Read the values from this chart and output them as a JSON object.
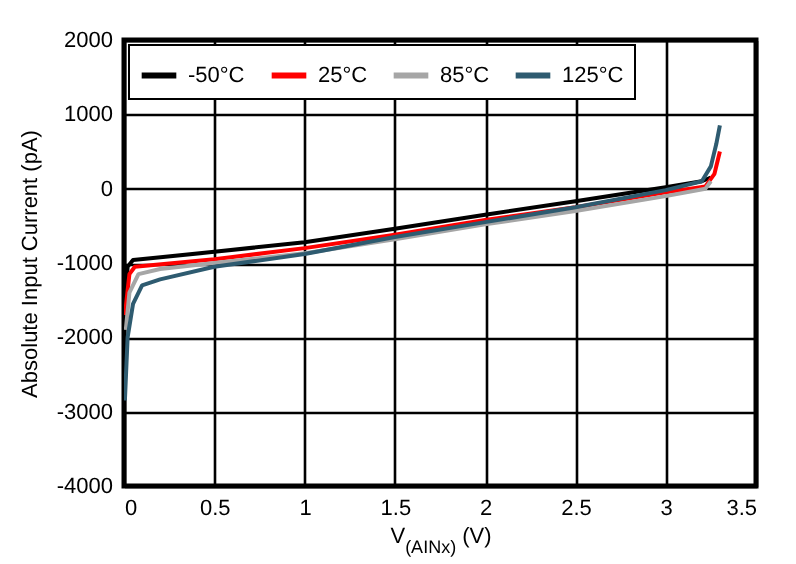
{
  "chart_data": {
    "type": "line",
    "xlabel": "V$_{(AINx)}$ (V)",
    "ylabel": "Absolute Input Current (pA)",
    "xlim": [
      0,
      3.5
    ],
    "xticks": [
      0,
      0.5,
      1,
      1.5,
      2,
      2.5,
      3,
      3.5
    ],
    "ylim": [
      -4000,
      2000
    ],
    "yticks": [
      -4000,
      -3000,
      -2000,
      -1000,
      0,
      1000,
      2000
    ],
    "grid": true,
    "legend": "top left",
    "series": [
      {
        "name": "-50°C",
        "color": "#000000",
        "x": [
          0.005,
          0.02,
          0.05,
          0.5,
          1,
          1.5,
          2,
          2.5,
          3,
          3.2,
          3.25
        ],
        "values": [
          -1600,
          -1050,
          -960,
          -850,
          -720,
          -540,
          -350,
          -170,
          20,
          100,
          150
        ]
      },
      {
        "name": "25°C",
        "color": "#ff0000",
        "x": [
          0.005,
          0.03,
          0.06,
          0.5,
          1,
          1.5,
          2,
          2.5,
          3,
          3.22,
          3.27,
          3.3
        ],
        "values": [
          -1700,
          -1150,
          -1050,
          -950,
          -800,
          -620,
          -420,
          -250,
          -50,
          30,
          200,
          500
        ]
      },
      {
        "name": "85°C",
        "color": "#a6a6a6",
        "x": [
          0.01,
          0.03,
          0.08,
          0.2,
          0.5,
          1,
          1.5,
          2,
          2.5,
          3,
          3.22,
          3.25
        ],
        "values": [
          -1900,
          -1400,
          -1150,
          -1080,
          -1000,
          -870,
          -680,
          -480,
          -300,
          -100,
          0,
          100
        ]
      },
      {
        "name": "125°C",
        "color": "#2e5b70",
        "x": [
          0.005,
          0.02,
          0.05,
          0.1,
          0.2,
          0.5,
          1,
          1.5,
          2,
          2.5,
          3,
          3.2,
          3.25,
          3.28,
          3.3
        ],
        "values": [
          -2850,
          -2000,
          -1550,
          -1300,
          -1220,
          -1050,
          -880,
          -650,
          -450,
          -250,
          -20,
          100,
          300,
          600,
          850
        ]
      }
    ]
  }
}
